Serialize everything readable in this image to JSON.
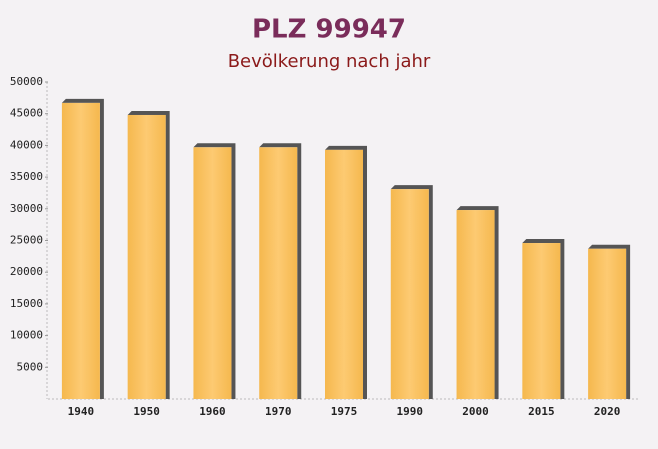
{
  "chart_data": {
    "type": "bar",
    "title": "PLZ 99947",
    "subtitle": "Bevölkerung nach jahr",
    "categories": [
      "1940",
      "1950",
      "1960",
      "1970",
      "1975",
      "1990",
      "2000",
      "2015",
      "2020"
    ],
    "values": [
      46700,
      44800,
      39700,
      39700,
      39300,
      33100,
      29800,
      24600,
      23700
    ],
    "color": "#fcc76a",
    "ylim": [
      0,
      50000
    ],
    "yticks": [
      5000,
      10000,
      15000,
      20000,
      25000,
      30000,
      35000,
      40000,
      45000,
      50000
    ]
  }
}
